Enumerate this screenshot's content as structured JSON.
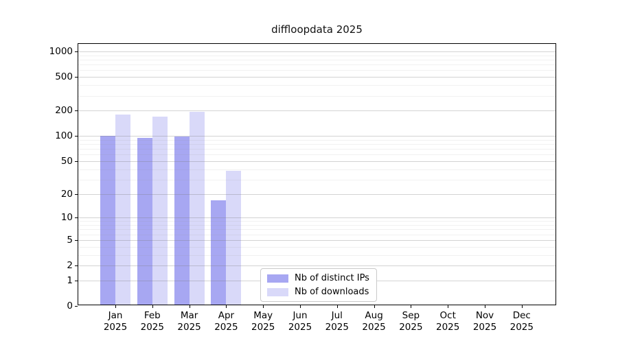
{
  "title": "diffloopdata 2025",
  "chart_data": {
    "type": "bar",
    "title": "diffloopdata 2025",
    "year": "2025",
    "categories": [
      "Jan",
      "Feb",
      "Mar",
      "Apr",
      "May",
      "Jun",
      "Jul",
      "Aug",
      "Sep",
      "Oct",
      "Nov",
      "Dec"
    ],
    "series": [
      {
        "name": "Nb of distinct IPs",
        "color": "#a7a7f2",
        "values": [
          97,
          91,
          95,
          16,
          0,
          0,
          0,
          0,
          0,
          0,
          0,
          0
        ]
      },
      {
        "name": "Nb of downloads",
        "color": "#d9d9f9",
        "values": [
          172,
          164,
          188,
          37,
          0,
          0,
          0,
          0,
          0,
          0,
          0,
          0
        ]
      }
    ],
    "yscale": "log10(value+1)",
    "ylim": [
      0,
      1230
    ],
    "yticks": [
      1000,
      500,
      200,
      100,
      50,
      20,
      10,
      5,
      2,
      1,
      0
    ],
    "yticks_minor": [
      900,
      800,
      700,
      600,
      400,
      300,
      90,
      80,
      70,
      60,
      40,
      30,
      9,
      8,
      7,
      6,
      4,
      3
    ],
    "grid": "horizontal",
    "legend_position": "lower-center-inside",
    "xlabel": "",
    "ylabel": ""
  }
}
